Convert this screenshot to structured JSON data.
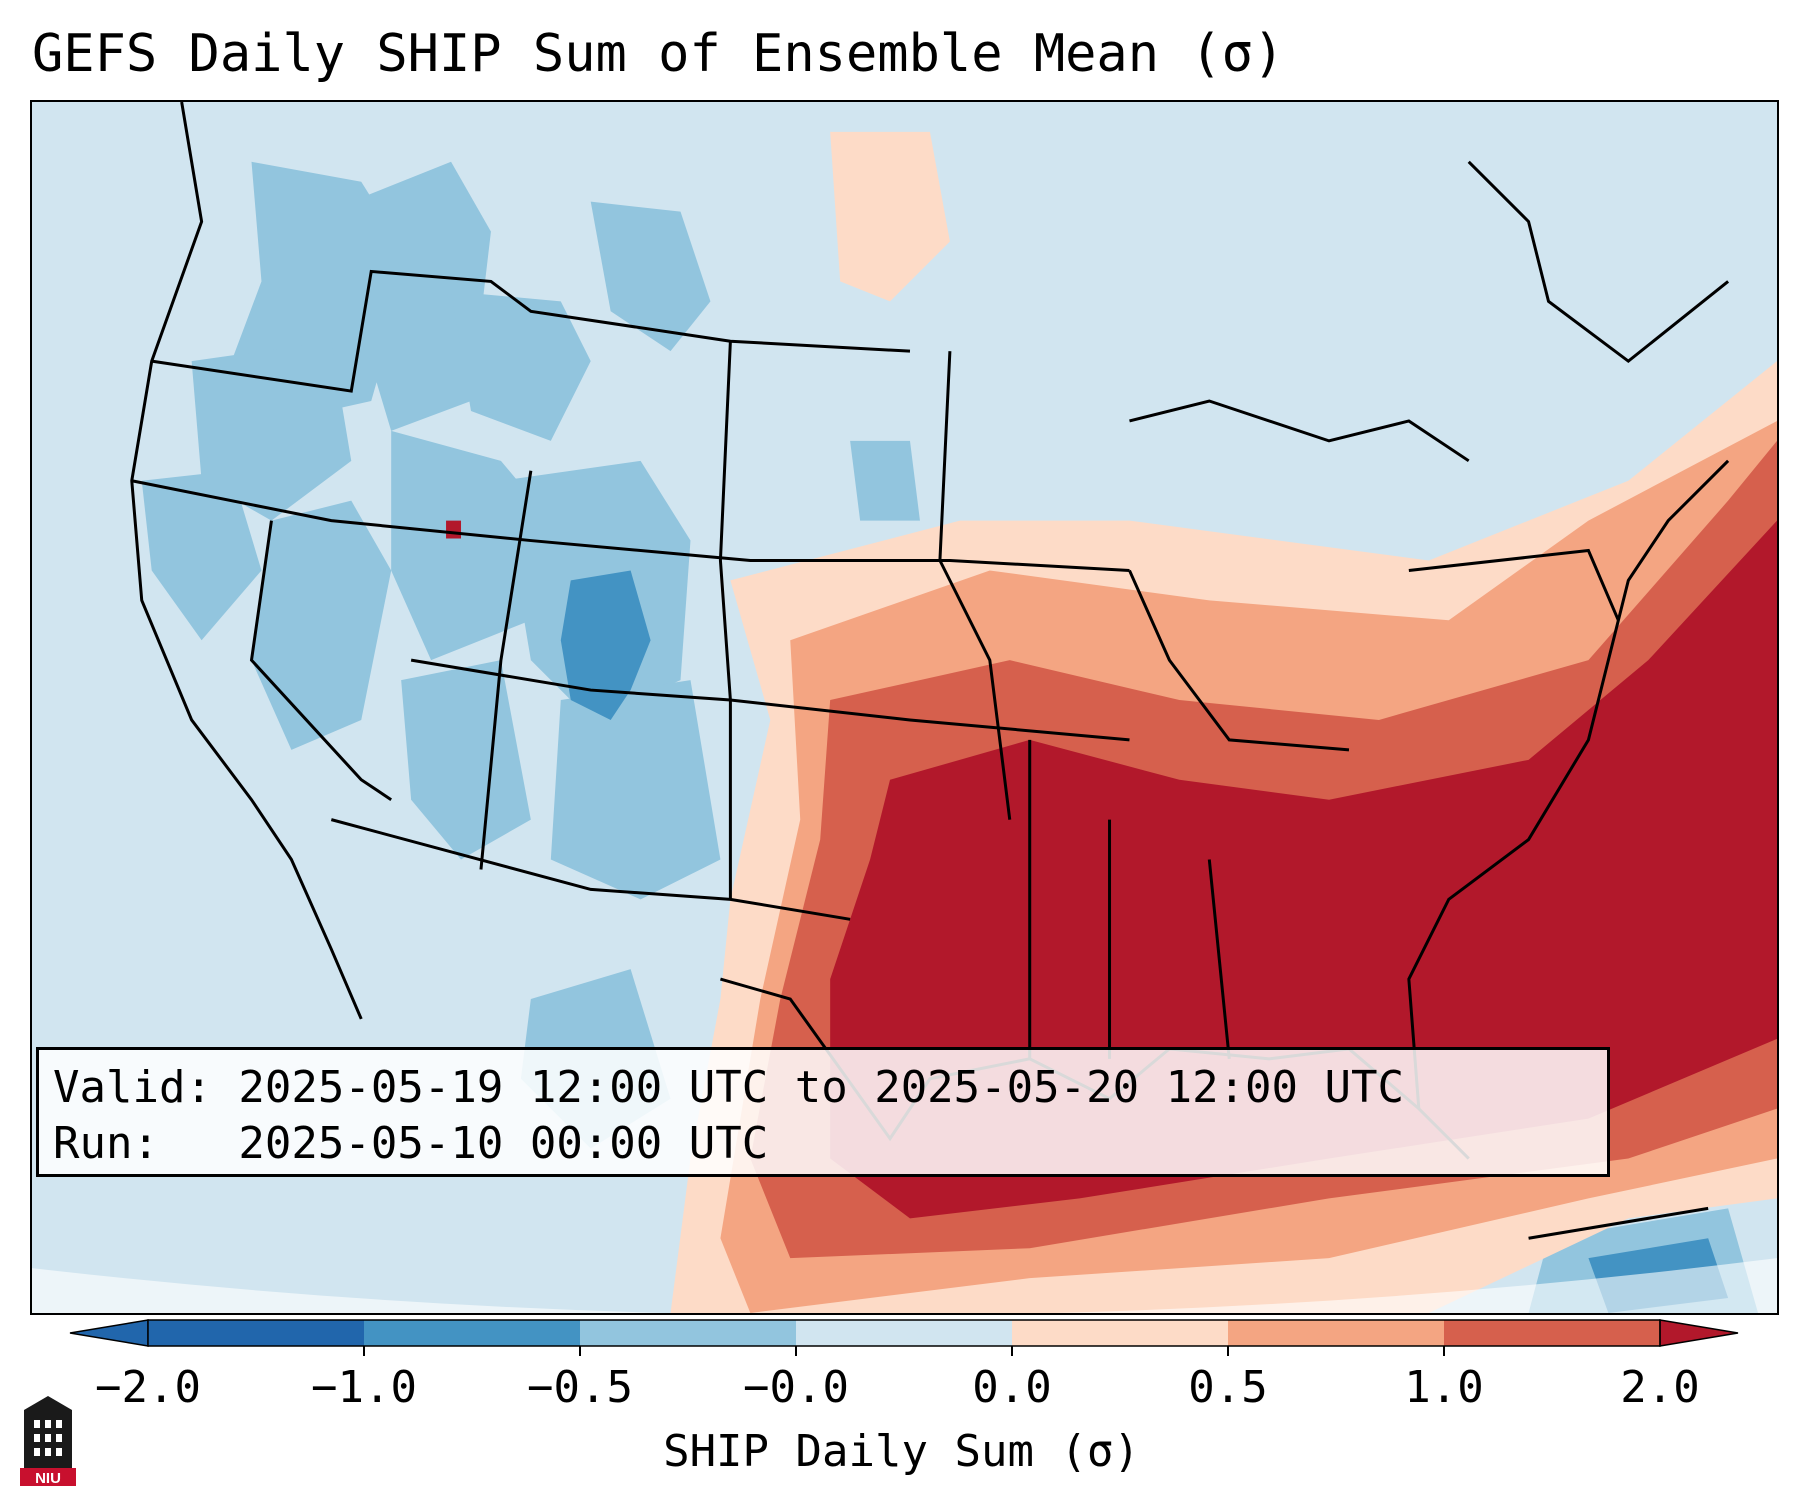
{
  "title": "GEFS Daily SHIP Sum of Ensemble Mean (σ)",
  "info": {
    "valid_line": "Valid: 2025-05-19 12:00 UTC to 2025-05-20 12:00 UTC",
    "run_line": "Run:   2025-05-10 00:00 UTC"
  },
  "colorbar": {
    "label": "SHIP Daily Sum (σ)",
    "tick_labels": [
      "−2.0",
      "−1.0",
      "−0.5",
      "−0.0",
      "0.0",
      "0.5",
      "1.0",
      "2.0"
    ],
    "colors": {
      "under": "#2166ac",
      "bin_-2_-1": "#4393c3",
      "bin_-1_-0.5": "#92c5de",
      "bin_-0.5_0": "#d1e5f0",
      "bin_0_0.5": "#fddbc7",
      "bin_0.5_1": "#f4a582",
      "bin_1_2": "#d6604d",
      "over": "#b2182b"
    }
  },
  "logo": {
    "name": "NIU",
    "text": "NIU"
  }
}
